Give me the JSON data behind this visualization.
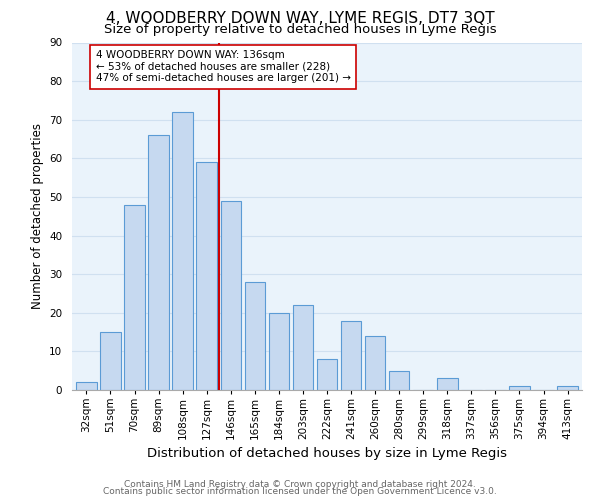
{
  "title": "4, WOODBERRY DOWN WAY, LYME REGIS, DT7 3QT",
  "subtitle": "Size of property relative to detached houses in Lyme Regis",
  "xlabel": "Distribution of detached houses by size in Lyme Regis",
  "ylabel": "Number of detached properties",
  "footer_line1": "Contains HM Land Registry data © Crown copyright and database right 2024.",
  "footer_line2": "Contains public sector information licensed under the Open Government Licence v3.0.",
  "bar_labels": [
    "32sqm",
    "51sqm",
    "70sqm",
    "89sqm",
    "108sqm",
    "127sqm",
    "146sqm",
    "165sqm",
    "184sqm",
    "203sqm",
    "222sqm",
    "241sqm",
    "260sqm",
    "280sqm",
    "299sqm",
    "318sqm",
    "337sqm",
    "356sqm",
    "375sqm",
    "394sqm",
    "413sqm"
  ],
  "bar_values": [
    2,
    15,
    48,
    66,
    72,
    59,
    49,
    28,
    20,
    22,
    8,
    18,
    14,
    5,
    0,
    3,
    0,
    0,
    1,
    0,
    1
  ],
  "bar_color": "#c6d9f0",
  "bar_edge_color": "#5b9bd5",
  "grid_color": "#d0e0f0",
  "background_color": "#eaf3fb",
  "vline_x_index": 5.5,
  "vline_color": "#cc0000",
  "annotation_text": "4 WOODBERRY DOWN WAY: 136sqm\n← 53% of detached houses are smaller (228)\n47% of semi-detached houses are larger (201) →",
  "annotation_box_color": "white",
  "annotation_box_edge_color": "#cc0000",
  "ylim": [
    0,
    90
  ],
  "yticks": [
    0,
    10,
    20,
    30,
    40,
    50,
    60,
    70,
    80,
    90
  ],
  "title_fontsize": 11,
  "subtitle_fontsize": 9.5,
  "xlabel_fontsize": 9.5,
  "ylabel_fontsize": 8.5,
  "tick_fontsize": 7.5,
  "annotation_fontsize": 7.5,
  "footer_fontsize": 6.5
}
